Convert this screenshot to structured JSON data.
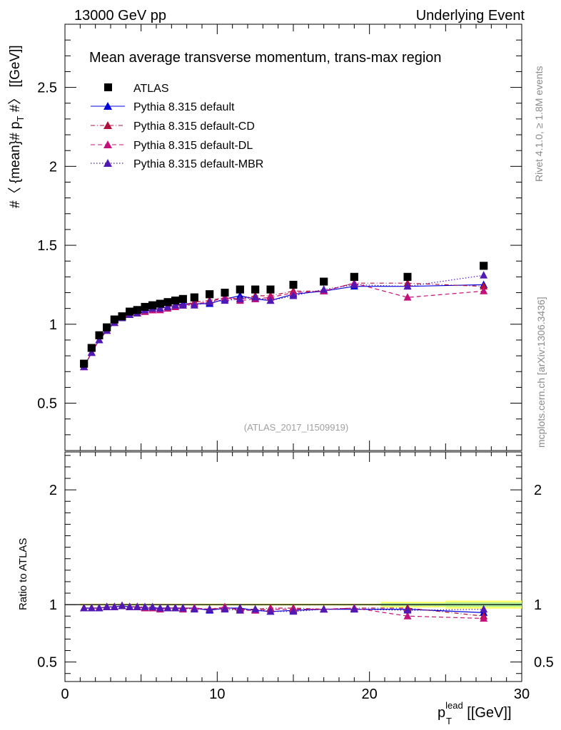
{
  "header": {
    "left": "13000 GeV pp",
    "right": "Underlying Event"
  },
  "side_labels": {
    "rivet": "Rivet 4.1.0, ≥ 1.8M events",
    "mcplots": "mcplots.cern.ch [arXiv:1306.3436]"
  },
  "chart_data": {
    "type": "scatter",
    "title": "Mean average transverse momentum, trans-max region",
    "analysis_tag": "(ATLAS_2017_I1509919)",
    "ylabel": "#〈{mean}# p_T #〉 [[GeV]]",
    "ylabel_parts": {
      "a": "#〈 {mean}# p",
      "sub": "T",
      "b": " #〉 [[GeV]]"
    },
    "xlabel_parts": {
      "p": "p",
      "sub": "T",
      "sup": "lead",
      "unit": " [[GeV]]"
    },
    "ratio_ylabel": "Ratio to ATLAS",
    "xlim": [
      0,
      30
    ],
    "ylim": [
      0.2,
      2.9
    ],
    "ratio_ylim": [
      0.33,
      2.33
    ],
    "x_ticks": [
      0,
      10,
      20,
      30
    ],
    "y_ticks": [
      0.5,
      1,
      1.5,
      2,
      2.5
    ],
    "ratio_y_ticks": [
      0.5,
      1,
      2
    ],
    "colors": {
      "data": "#000000",
      "default": "#0000dd",
      "cd": "#b0103c",
      "dl": "#c4107a",
      "mbr": "#5019b4",
      "band_yellow": "#ffff66",
      "band_green": "#aef29a"
    },
    "x": [
      1.25,
      1.75,
      2.25,
      2.75,
      3.25,
      3.75,
      4.25,
      4.75,
      5.25,
      5.75,
      6.25,
      6.75,
      7.25,
      7.75,
      8.5,
      9.5,
      10.5,
      11.5,
      12.5,
      13.5,
      15.0,
      17.0,
      19.0,
      22.5,
      27.5
    ],
    "series": [
      {
        "name": "ATLAS",
        "key": "data",
        "style": "data",
        "values": [
          0.75,
          0.85,
          0.93,
          0.98,
          1.03,
          1.05,
          1.08,
          1.09,
          1.11,
          1.12,
          1.13,
          1.14,
          1.15,
          1.16,
          1.17,
          1.19,
          1.2,
          1.22,
          1.22,
          1.22,
          1.25,
          1.27,
          1.3,
          1.3,
          1.37
        ],
        "ratio": [
          1,
          1,
          1,
          1,
          1,
          1,
          1,
          1,
          1,
          1,
          1,
          1,
          1,
          1,
          1,
          1,
          1,
          1,
          1,
          1,
          1,
          1,
          1,
          1,
          1
        ]
      },
      {
        "name": "Pythia 8.315 default",
        "key": "default",
        "style": "solid",
        "values": [
          0.73,
          0.82,
          0.9,
          0.96,
          1.01,
          1.04,
          1.06,
          1.07,
          1.08,
          1.09,
          1.1,
          1.11,
          1.12,
          1.13,
          1.13,
          1.13,
          1.16,
          1.18,
          1.16,
          1.15,
          1.19,
          1.21,
          1.24,
          1.24,
          1.25
        ],
        "ratio": [
          0.97,
          0.97,
          0.97,
          0.98,
          0.98,
          0.99,
          0.98,
          0.98,
          0.97,
          0.97,
          0.97,
          0.97,
          0.97,
          0.97,
          0.97,
          0.95,
          0.97,
          0.97,
          0.95,
          0.94,
          0.95,
          0.96,
          0.96,
          0.96,
          0.93
        ]
      },
      {
        "name": "Pythia 8.315 default-CD",
        "key": "cd",
        "style": "dashdot",
        "values": [
          0.73,
          0.82,
          0.9,
          0.96,
          1.01,
          1.04,
          1.06,
          1.07,
          1.08,
          1.09,
          1.1,
          1.11,
          1.12,
          1.12,
          1.14,
          1.15,
          1.17,
          1.16,
          1.18,
          1.18,
          1.21,
          1.21,
          1.26,
          1.26,
          1.24
        ],
        "ratio": [
          0.97,
          0.97,
          0.97,
          0.98,
          0.98,
          0.99,
          0.98,
          0.98,
          0.97,
          0.97,
          0.97,
          0.97,
          0.97,
          0.97,
          0.97,
          0.96,
          0.97,
          0.96,
          0.96,
          0.97,
          0.97,
          0.96,
          0.97,
          0.97,
          0.9
        ]
      },
      {
        "name": "Pythia 8.315 default-DL",
        "key": "dl",
        "style": "dashed",
        "values": [
          0.73,
          0.82,
          0.9,
          0.96,
          1.01,
          1.04,
          1.06,
          1.07,
          1.08,
          1.09,
          1.09,
          1.1,
          1.11,
          1.12,
          1.13,
          1.14,
          1.17,
          1.15,
          1.16,
          1.17,
          1.2,
          1.21,
          1.26,
          1.17,
          1.21
        ],
        "ratio": [
          0.97,
          0.97,
          0.97,
          0.98,
          0.98,
          0.99,
          0.98,
          0.98,
          0.97,
          0.97,
          0.96,
          0.97,
          0.97,
          0.96,
          0.97,
          0.96,
          0.98,
          0.95,
          0.95,
          0.96,
          0.96,
          0.96,
          0.97,
          0.9,
          0.88
        ]
      },
      {
        "name": "Pythia 8.315 default-MBR",
        "key": "mbr",
        "style": "dotted",
        "values": [
          0.73,
          0.82,
          0.9,
          0.96,
          1.01,
          1.04,
          1.06,
          1.07,
          1.09,
          1.1,
          1.1,
          1.11,
          1.12,
          1.12,
          1.12,
          1.14,
          1.15,
          1.16,
          1.17,
          1.15,
          1.18,
          1.22,
          1.25,
          1.24,
          1.31
        ],
        "ratio": [
          0.97,
          0.97,
          0.97,
          0.98,
          0.98,
          0.99,
          0.98,
          0.98,
          0.98,
          0.98,
          0.97,
          0.97,
          0.97,
          0.97,
          0.96,
          0.96,
          0.96,
          0.95,
          0.96,
          0.94,
          0.94,
          0.96,
          0.96,
          0.95,
          0.96
        ]
      }
    ]
  }
}
